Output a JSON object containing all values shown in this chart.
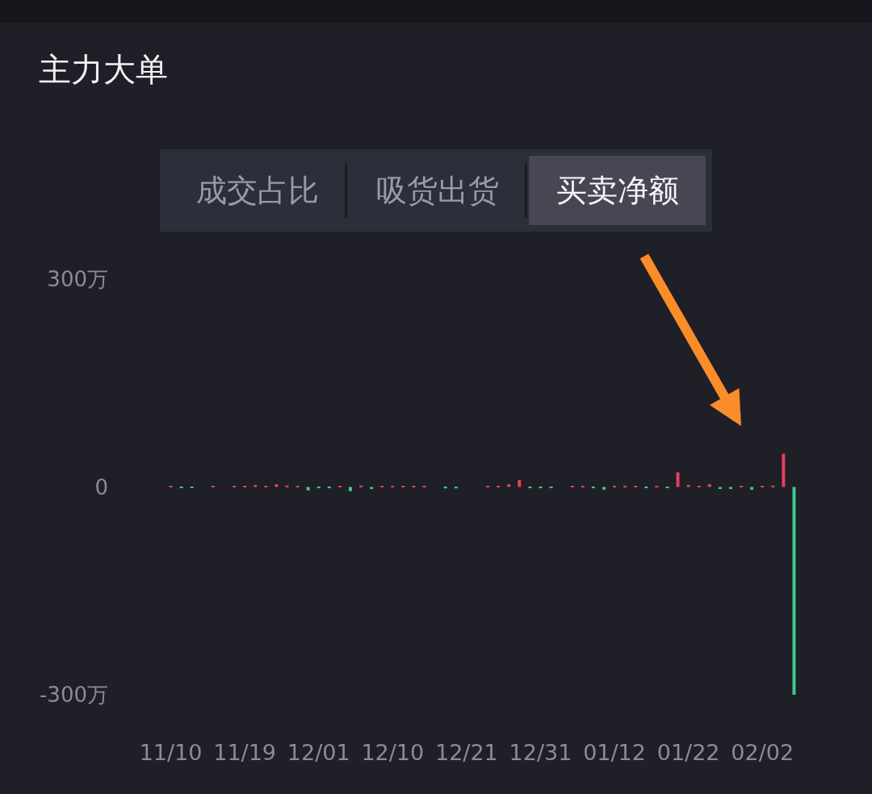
{
  "chart_data": {
    "type": "bar",
    "title": "主力大单",
    "annotations": [
      "成交占比",
      "吸货出货",
      "买卖净额"
    ],
    "categories": [
      "11/10",
      null,
      null,
      null,
      null,
      null,
      null,
      "11/19",
      null,
      null,
      null,
      null,
      null,
      null,
      "12/01",
      null,
      null,
      null,
      null,
      null,
      null,
      "12/10",
      null,
      null,
      null,
      null,
      null,
      null,
      "12/21",
      null,
      null,
      null,
      null,
      null,
      null,
      "12/31",
      null,
      null,
      null,
      null,
      null,
      null,
      "01/12",
      null,
      null,
      null,
      null,
      null,
      null,
      "01/22",
      null,
      null,
      null,
      null,
      null,
      null,
      "02/02",
      null,
      null,
      null
    ],
    "values": [
      1,
      -1,
      -1,
      0,
      1,
      0,
      1,
      1,
      3,
      1,
      4,
      2,
      1,
      -5,
      -1,
      -1,
      1,
      -6,
      2,
      -3,
      1,
      1,
      1,
      1,
      1,
      0,
      -2,
      -2,
      0,
      0,
      1,
      1,
      4,
      10,
      -1,
      -1,
      -1,
      0,
      1,
      1,
      -1,
      -4,
      1,
      1,
      1,
      -1,
      1,
      -1,
      21,
      3,
      1,
      4,
      -3,
      -3,
      1,
      -4,
      1,
      2,
      48,
      -300
    ],
    "colors": [
      "#e8415a",
      "#3ecb8a",
      "#3ecb8a",
      "#e8415a",
      "#e8415a",
      "#e8415a",
      "#e8415a",
      "#e8415a",
      "#e8415a",
      "#e8415a",
      "#e8415a",
      "#e8415a",
      "#e8415a",
      "#3ecb8a",
      "#3ecb8a",
      "#3ecb8a",
      "#e8415a",
      "#3ecb8a",
      "#e8415a",
      "#3ecb8a",
      "#e8415a",
      "#e8415a",
      "#e8415a",
      "#e8415a",
      "#e8415a",
      "#e8415a",
      "#3ecb8a",
      "#3ecb8a",
      "#e8415a",
      "#e8415a",
      "#e8415a",
      "#e8415a",
      "#e8415a",
      "#e8415a",
      "#3ecb8a",
      "#3ecb8a",
      "#3ecb8a",
      "#e8415a",
      "#e8415a",
      "#e8415a",
      "#3ecb8a",
      "#3ecb8a",
      "#e8415a",
      "#e8415a",
      "#e8415a",
      "#3ecb8a",
      "#e8415a",
      "#3ecb8a",
      "#e8415a",
      "#e8415a",
      "#e8415a",
      "#e8415a",
      "#3ecb8a",
      "#3ecb8a",
      "#e8415a",
      "#3ecb8a",
      "#e8415a",
      "#e8415a",
      "#e8415a",
      "#3ecb8a"
    ],
    "ylim": [
      -300,
      300
    ],
    "yticks": [
      {
        "value": 300,
        "label": "300万"
      },
      0,
      {
        "value": -300,
        "label": "-300万"
      }
    ],
    "grid": false,
    "legend": false
  }
}
